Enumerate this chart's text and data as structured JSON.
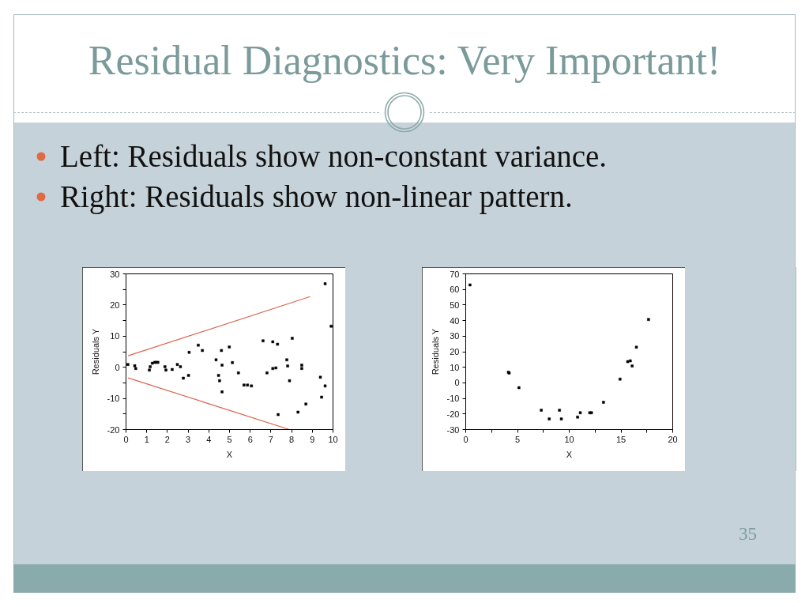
{
  "chart_data": [
    {
      "type": "scatter",
      "title": "Residual Diagnostics: Very Important!",
      "annotations": [
        "Left: Residuals show non-constant variance.",
        "Right: Residuals show non-linear pattern."
      ],
      "xlabel": "X",
      "ylabel": "Residuals Y",
      "xlim": [
        0,
        10
      ],
      "ylim": [
        -20,
        30
      ],
      "xticks": [
        0,
        1,
        2,
        3,
        4,
        5,
        6,
        7,
        8,
        9,
        10
      ],
      "yticks": [
        -20,
        {
          "value": -15,
          "label": null
        },
        -10,
        {
          "value": -5,
          "label": null
        },
        0,
        {
          "value": 5,
          "label": null
        },
        10,
        {
          "value": 15,
          "label": null
        },
        20,
        {
          "value": 25,
          "label": null
        },
        30
      ],
      "grid": false,
      "series": [
        {
          "color": "#000000",
          "marker": "square",
          "x": [
            0.09,
            0.42,
            0.47,
            1.13,
            1.17,
            1.27,
            1.39,
            1.46,
            1.54,
            1.88,
            1.93,
            2.23,
            2.48,
            2.63,
            2.77,
            3.02,
            3.05,
            3.49,
            3.69,
            4.35,
            4.47,
            4.52,
            4.61,
            4.64,
            4.64,
            4.99,
            5.14,
            5.43,
            5.7,
            5.87,
            6.06,
            6.62,
            6.81,
            7.09,
            7.09,
            7.24,
            7.32,
            7.35,
            7.77,
            7.81,
            7.9,
            8.03,
            8.31,
            8.49,
            8.49,
            8.69,
            9.39,
            9.45,
            9.62,
            9.62,
            9.91
          ],
          "values": [
            0.9,
            0.5,
            -0.4,
            -0.9,
            0.2,
            1.3,
            1.6,
            1.6,
            1.6,
            0.2,
            -0.9,
            -0.7,
            0.9,
            0.2,
            -3.5,
            -2.6,
            4.8,
            7.1,
            5.4,
            2.4,
            -2.6,
            -4.3,
            5.4,
            0.7,
            -7.9,
            6.5,
            1.5,
            -1.8,
            -5.7,
            -5.7,
            -6.0,
            8.5,
            -1.8,
            -0.4,
            8.2,
            -0.2,
            7.4,
            -15.2,
            2.4,
            0.4,
            -4.3,
            9.3,
            -14.4,
            0.7,
            -0.4,
            -11.8,
            -3.2,
            -9.6,
            -6.0,
            26.8,
            13.2
          ]
        },
        {
          "type": "line",
          "color": "#d9674f",
          "x": [
            0.1,
            8.9
          ],
          "values": [
            3.7,
            22.7
          ]
        },
        {
          "type": "line",
          "color": "#d9674f",
          "x": [
            0.1,
            7.9
          ],
          "values": [
            -3.4,
            -20
          ]
        }
      ]
    },
    {
      "type": "scatter",
      "annotations": [
        "35"
      ],
      "xlabel": "X",
      "ylabel": "Residuals Y",
      "xlim": [
        0,
        20
      ],
      "ylim": [
        -30,
        70
      ],
      "xticks": [
        0,
        {
          "value": 2.5,
          "label": null
        },
        5,
        {
          "value": 7.5,
          "label": null
        },
        10,
        {
          "value": 12.5,
          "label": null
        },
        15,
        {
          "value": 17.5,
          "label": null
        },
        20
      ],
      "yticks": [
        -30,
        -20,
        -10,
        0,
        10,
        20,
        30,
        40,
        50,
        60,
        70
      ],
      "grid": false,
      "series": [
        {
          "color": "#000000",
          "marker": "square",
          "x": [
            0.41,
            4.12,
            4.2,
            5.14,
            7.3,
            8.07,
            9.06,
            9.24,
            10.81,
            11.07,
            11.98,
            12.15,
            13.31,
            14.91,
            15.65,
            15.9,
            16.08,
            16.49,
            17.66
          ],
          "values": [
            62.9,
            6.8,
            6.3,
            -3.1,
            -17.6,
            -23.2,
            -17.6,
            -23.2,
            -22.0,
            -19.2,
            -19.2,
            -19.2,
            -12.5,
            2.4,
            13.6,
            14.1,
            10.8,
            22.9,
            40.7
          ]
        }
      ]
    }
  ]
}
